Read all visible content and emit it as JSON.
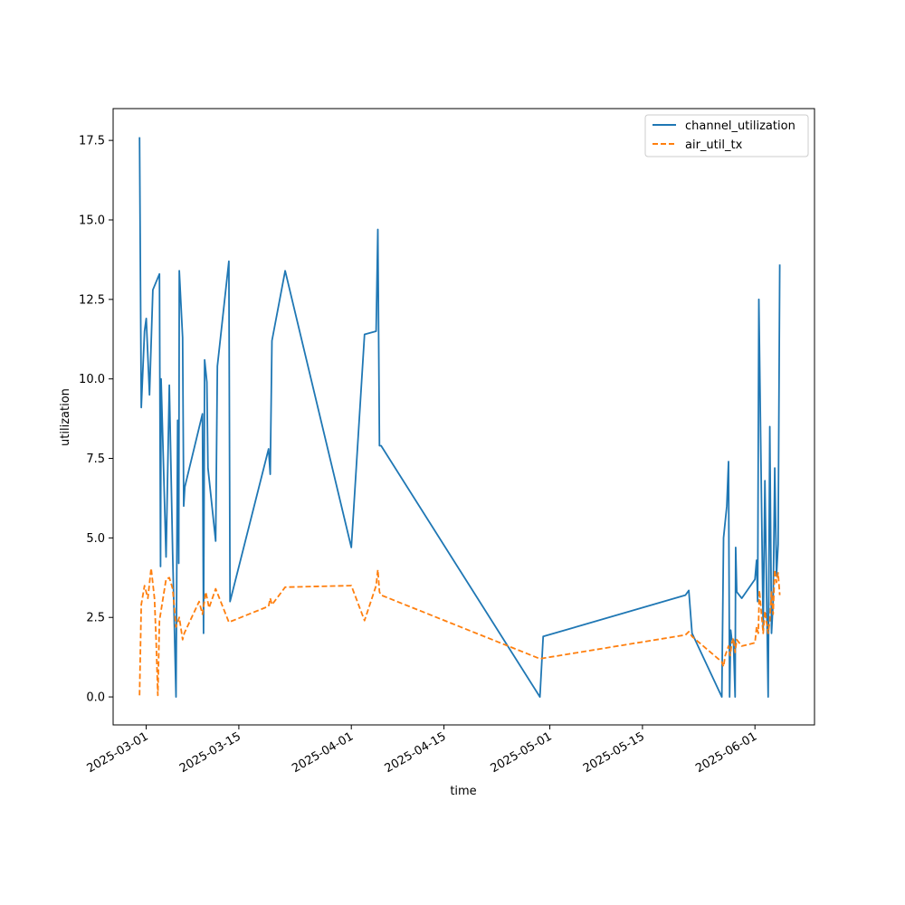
{
  "chart_data": {
    "type": "line",
    "title": "",
    "xlabel": "time",
    "ylabel": "utilization",
    "x_ticks": [
      "2025-03-01",
      "2025-03-15",
      "2025-04-01",
      "2025-04-15",
      "2025-05-01",
      "2025-05-15",
      "2025-06-01"
    ],
    "y_ticks": [
      "0.0",
      "2.5",
      "5.0",
      "7.5",
      "10.0",
      "12.5",
      "15.0",
      "17.5"
    ],
    "xlim": [
      "2025-02-24",
      "2025-06-10"
    ],
    "ylim": [
      -0.88,
      18.5
    ],
    "grid": false,
    "legend_position": "top-right",
    "series": [
      {
        "name": "channel_utilization",
        "color": "#1f77b4",
        "style": "solid",
        "points": [
          [
            "2025-02-28",
            17.6
          ],
          [
            "2025-02-28 06:00",
            9.1
          ],
          [
            "2025-02-28 18:00",
            11.5
          ],
          [
            "2025-03-01",
            11.9
          ],
          [
            "2025-03-01 12:00",
            9.5
          ],
          [
            "2025-03-02",
            12.8
          ],
          [
            "2025-03-03",
            13.3
          ],
          [
            "2025-03-03 04:00",
            4.1
          ],
          [
            "2025-03-03 06:00",
            10.0
          ],
          [
            "2025-03-04",
            4.4
          ],
          [
            "2025-03-04 12:00",
            9.8
          ],
          [
            "2025-03-05",
            4.5
          ],
          [
            "2025-03-05 12:00",
            0.0
          ],
          [
            "2025-03-05 18:00",
            8.7
          ],
          [
            "2025-03-05 22:00",
            4.2
          ],
          [
            "2025-03-06",
            13.4
          ],
          [
            "2025-03-06 12:00",
            11.3
          ],
          [
            "2025-03-06 16:00",
            6.0
          ],
          [
            "2025-03-06 20:00",
            6.6
          ],
          [
            "2025-03-09 12:00",
            8.9
          ],
          [
            "2025-03-09 16:00",
            2.0
          ],
          [
            "2025-03-09 20:00",
            10.6
          ],
          [
            "2025-03-10 04:00",
            9.9
          ],
          [
            "2025-03-10 08:00",
            7.2
          ],
          [
            "2025-03-11 12:00",
            4.9
          ],
          [
            "2025-03-11 18:00",
            10.4
          ],
          [
            "2025-03-13 12:00",
            13.7
          ],
          [
            "2025-03-13 16:00",
            3.0
          ],
          [
            "2025-03-19 12:00",
            7.8
          ],
          [
            "2025-03-19 18:00",
            7.0
          ],
          [
            "2025-03-20",
            11.2
          ],
          [
            "2025-03-22",
            13.4
          ],
          [
            "2025-04-01",
            4.7
          ],
          [
            "2025-04-03",
            11.4
          ],
          [
            "2025-04-04 18:00",
            11.5
          ],
          [
            "2025-04-05",
            14.7
          ],
          [
            "2025-04-05 06:00",
            7.9
          ],
          [
            "2025-04-05 12:00",
            7.9
          ],
          [
            "2025-04-29 12:00",
            0.0
          ],
          [
            "2025-04-30",
            1.9
          ],
          [
            "2025-05-21 12:00",
            3.2
          ],
          [
            "2025-05-22",
            3.35
          ],
          [
            "2025-05-22 12:00",
            2.0
          ],
          [
            "2025-05-27",
            0.0
          ],
          [
            "2025-05-27 06:00",
            5.0
          ],
          [
            "2025-05-27 18:00",
            6.0
          ],
          [
            "2025-05-28",
            7.4
          ],
          [
            "2025-05-28 04:00",
            0.0
          ],
          [
            "2025-05-28 08:00",
            2.1
          ],
          [
            "2025-05-28 12:00",
            1.8
          ],
          [
            "2025-05-28 18:00",
            1.8
          ],
          [
            "2025-05-29",
            0.0
          ],
          [
            "2025-05-29 02:00",
            4.7
          ],
          [
            "2025-05-29 06:00",
            3.3
          ],
          [
            "2025-05-30",
            3.1
          ],
          [
            "2025-06-01",
            3.7
          ],
          [
            "2025-06-01 06:00",
            4.3
          ],
          [
            "2025-06-01 10:00",
            3.0
          ],
          [
            "2025-06-01 14:00",
            12.5
          ],
          [
            "2025-06-02 06:00",
            2.1
          ],
          [
            "2025-06-02 12:00",
            6.8
          ],
          [
            "2025-06-03",
            0.0
          ],
          [
            "2025-06-03 06:00",
            8.5
          ],
          [
            "2025-06-03 12:00",
            2.0
          ],
          [
            "2025-06-03 18:00",
            3.0
          ],
          [
            "2025-06-04",
            7.2
          ],
          [
            "2025-06-04 06:00",
            3.8
          ],
          [
            "2025-06-04 12:00",
            4.8
          ],
          [
            "2025-06-04 18:00",
            13.6
          ]
        ]
      },
      {
        "name": "air_util_tx",
        "color": "#ff7f0e",
        "style": "dashed",
        "points": [
          [
            "2025-02-28",
            0.05
          ],
          [
            "2025-02-28 06:00",
            2.9
          ],
          [
            "2025-02-28 18:00",
            3.5
          ],
          [
            "2025-03-01 06:00",
            3.1
          ],
          [
            "2025-03-01 18:00",
            4.05
          ],
          [
            "2025-03-02 06:00",
            3.1
          ],
          [
            "2025-03-02 12:00",
            1.8
          ],
          [
            "2025-03-02 18:00",
            0.05
          ],
          [
            "2025-03-03",
            2.4
          ],
          [
            "2025-03-04",
            3.7
          ],
          [
            "2025-03-04 12:00",
            3.75
          ],
          [
            "2025-03-05",
            3.4
          ],
          [
            "2025-03-05 12:00",
            2.2
          ],
          [
            "2025-03-06",
            2.5
          ],
          [
            "2025-03-06 12:00",
            1.8
          ],
          [
            "2025-03-06 18:00",
            2.0
          ],
          [
            "2025-03-09",
            3.0
          ],
          [
            "2025-03-09 12:00",
            2.6
          ],
          [
            "2025-03-10",
            3.3
          ],
          [
            "2025-03-10 12:00",
            2.8
          ],
          [
            "2025-03-11 12:00",
            3.4
          ],
          [
            "2025-03-13 12:00",
            2.35
          ],
          [
            "2025-03-19 12:00",
            2.85
          ],
          [
            "2025-03-19 18:00",
            3.1
          ],
          [
            "2025-03-20",
            2.9
          ],
          [
            "2025-03-22",
            3.45
          ],
          [
            "2025-04-01",
            3.5
          ],
          [
            "2025-04-03",
            2.4
          ],
          [
            "2025-04-04 18:00",
            3.5
          ],
          [
            "2025-04-05",
            4.0
          ],
          [
            "2025-04-05 06:00",
            3.3
          ],
          [
            "2025-04-05 12:00",
            3.2
          ],
          [
            "2025-04-29 12:00",
            1.2
          ],
          [
            "2025-05-21 12:00",
            1.95
          ],
          [
            "2025-05-22",
            2.05
          ],
          [
            "2025-05-22 12:00",
            1.9
          ],
          [
            "2025-05-27",
            1.1
          ],
          [
            "2025-05-27 06:00",
            0.95
          ],
          [
            "2025-05-27 12:00",
            1.3
          ],
          [
            "2025-05-28",
            1.6
          ],
          [
            "2025-05-28 06:00",
            1.3
          ],
          [
            "2025-05-28 12:00",
            1.7
          ],
          [
            "2025-05-28 18:00",
            1.85
          ],
          [
            "2025-05-29",
            1.4
          ],
          [
            "2025-05-29 06:00",
            1.8
          ],
          [
            "2025-05-30",
            1.6
          ],
          [
            "2025-06-01",
            1.7
          ],
          [
            "2025-06-01 06:00",
            2.2
          ],
          [
            "2025-06-01 12:00",
            2.0
          ],
          [
            "2025-06-01 16:00",
            3.35
          ],
          [
            "2025-06-02 06:00",
            2.0
          ],
          [
            "2025-06-02 12:00",
            2.7
          ],
          [
            "2025-06-03",
            2.0
          ],
          [
            "2025-06-03 06:00",
            2.4
          ],
          [
            "2025-06-03 12:00",
            3.3
          ],
          [
            "2025-06-03 18:00",
            2.6
          ],
          [
            "2025-06-04",
            4.0
          ],
          [
            "2025-06-04 06:00",
            3.6
          ],
          [
            "2025-06-04 12:00",
            3.9
          ],
          [
            "2025-06-04 18:00",
            3.2
          ]
        ]
      }
    ]
  }
}
